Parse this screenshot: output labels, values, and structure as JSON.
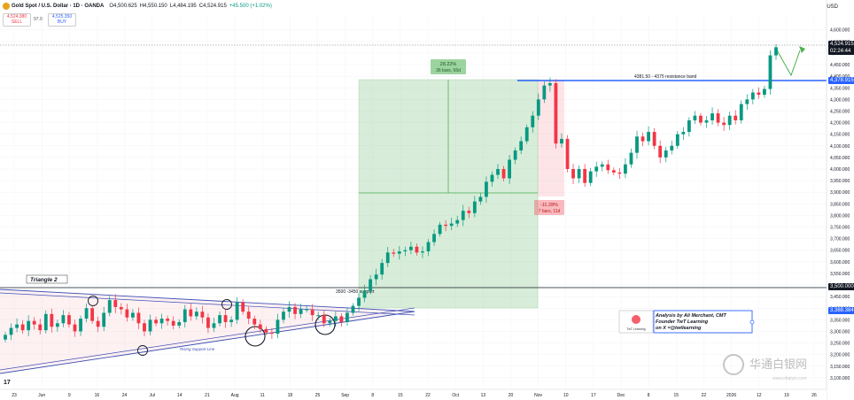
{
  "header": {
    "title": "Gold Spot / U.S. Dollar · 1D · OANDA",
    "ohlc_open": "O4,500.625",
    "ohlc_high": "H4,550.150",
    "ohlc_low": "L4,484.195",
    "ohlc_close": "C4,524.915",
    "ohlc_change": "+45.500 (+1.02%)",
    "sell_price": "4,524.380",
    "sell_label": "SELL",
    "buy_price": "4,525.350",
    "buy_label": "BUY",
    "spread": "97.0",
    "currency": "USD"
  },
  "axis_badges": {
    "price_current": "4,524.915",
    "countdown": "02:24:44",
    "resistance": "4,378.915",
    "level_3500": "3,500.000",
    "level_3388": "3,388.384"
  },
  "annotations": {
    "triangle": "Triangle 2",
    "rising_support": "Rising Support Line",
    "support_zone": "3500 -3450 support",
    "resistance_band": "4381.50 - 4375 resistance band",
    "gain_pct": "28.22%",
    "gain_bars": "36 bars, 56d",
    "drop_pct": "-11.28%",
    "drop_bars": "7 bars, 11d",
    "credit_1": "Analysis by Ali Merchant, CMT",
    "credit_2": "Founder TwT Learning",
    "credit_3": "on X =@twtlearning",
    "logo_text": "TwT Learning",
    "watermark": "华通白银网",
    "watermark_sub": "www.ebaiyin.com",
    "corner_mark": "17"
  },
  "colors": {
    "up": "#089981",
    "down": "#f23645",
    "resistance_line": "#2962ff",
    "gain_box": "#4caf50",
    "drop_box": "#f23645",
    "projection": "#4caf50",
    "triangle_line": "#3f51b5"
  },
  "chart_data": {
    "type": "candlestick",
    "symbol": "XAUUSD",
    "timeframe": "1D",
    "y_ticks": [
      3100,
      3150,
      3200,
      3250,
      3300,
      3350,
      3400,
      3450,
      3500,
      3550,
      3600,
      3650,
      3700,
      3750,
      3800,
      3850,
      3900,
      3950,
      4000,
      4050,
      4100,
      4150,
      4200,
      4250,
      4300,
      4350,
      4400,
      4450,
      4500,
      4550,
      4600
    ],
    "y_tick_labels": [
      "3,100.000",
      "3,150.000",
      "3,200.000",
      "3,250.000",
      "3,300.000",
      "3,350.000",
      "3,400.000",
      "3,450.000",
      "3,500.000",
      "3,550.000",
      "3,600.000",
      "3,650.000",
      "3,700.000",
      "3,750.000",
      "3,800.000",
      "3,850.000",
      "3,900.000",
      "3,950.000",
      "4,000.000",
      "4,050.000",
      "4,100.000",
      "4,150.000",
      "4,200.000",
      "4,250.000",
      "4,300.000",
      "4,350.000",
      "4,400.000",
      "4,450.000",
      "4,500.000",
      "4,550.000",
      "4,600.000"
    ],
    "ylim": [
      3050,
      4660
    ],
    "x_ticks": [
      "23",
      "Jun",
      "9",
      "16",
      "24",
      "Jul",
      "14",
      "21",
      "Aug",
      "11",
      "18",
      "25",
      "Sep",
      "8",
      "15",
      "22",
      "Oct",
      "13",
      "20",
      "Nov",
      "10",
      "17",
      "Dec",
      "8",
      "15",
      "22",
      "2026",
      "12",
      "19",
      "26"
    ],
    "close": [
      3285,
      3315,
      3330,
      3305,
      3345,
      3330,
      3305,
      3375,
      3320,
      3335,
      3370,
      3330,
      3300,
      3355,
      3400,
      3345,
      3320,
      3380,
      3435,
      3405,
      3395,
      3360,
      3380,
      3335,
      3300,
      3350,
      3335,
      3355,
      3345,
      3325,
      3340,
      3395,
      3365,
      3385,
      3360,
      3315,
      3335,
      3370,
      3340,
      3350,
      3425,
      3385,
      3355,
      3330,
      3310,
      3295,
      3290,
      3350,
      3385,
      3405,
      3375,
      3395,
      3395,
      3370,
      3370,
      3335,
      3345,
      3365,
      3340,
      3380,
      3410,
      3445,
      3475,
      3525,
      3545,
      3595,
      3640,
      3635,
      3645,
      3650,
      3665,
      3640,
      3645,
      3685,
      3720,
      3760,
      3755,
      3765,
      3780,
      3820,
      3810,
      3860,
      3880,
      3945,
      3975,
      4000,
      3960,
      4040,
      4080,
      4120,
      4180,
      4230,
      4300,
      4360,
      4370,
      4110,
      4130,
      4000,
      3960,
      4000,
      3940,
      3990,
      4010,
      4020,
      3995,
      3985,
      3980,
      4020,
      4070,
      4140,
      4120,
      4160,
      4100,
      4050,
      4080,
      4100,
      4150,
      4160,
      4210,
      4230,
      4200,
      4210,
      4240,
      4200,
      4190,
      4230,
      4210,
      4280,
      4300,
      4330,
      4320,
      4345,
      4490,
      4525
    ]
  }
}
